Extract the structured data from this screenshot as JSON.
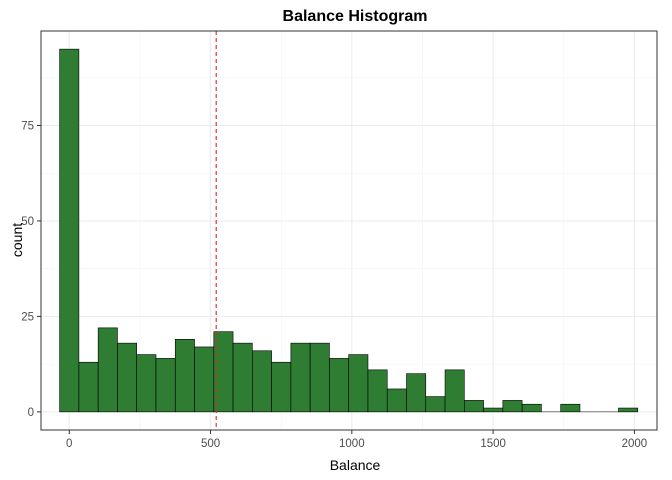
{
  "chart_data": {
    "type": "bar",
    "subtype": "histogram",
    "title": "Balance Histogram",
    "xlabel": "Balance",
    "ylabel": "count",
    "bin_width": 68.2,
    "bin_start": -34.1,
    "counts": [
      95,
      13,
      22,
      18,
      15,
      14,
      19,
      17,
      21,
      18,
      16,
      13,
      18,
      18,
      14,
      15,
      11,
      6,
      10,
      4,
      11,
      3,
      1,
      3,
      2,
      0,
      2,
      0,
      0,
      1
    ],
    "xlim": [
      -100,
      2080
    ],
    "ylim": [
      -4.75,
      99.75
    ],
    "x_ticks": [
      0,
      500,
      1000,
      1500,
      2000
    ],
    "x_tick_labels": [
      "0",
      "500",
      "1000",
      "1500",
      "2000"
    ],
    "y_ticks": [
      0,
      25,
      50,
      75
    ],
    "y_tick_labels": [
      "0",
      "25",
      "50",
      "75"
    ],
    "mean_line": {
      "x": 520,
      "color": "#d62728",
      "style": "dashed"
    },
    "bar_color": "#2e7d32",
    "bar_outline": "#000000",
    "grid": true,
    "theme": "bw"
  }
}
